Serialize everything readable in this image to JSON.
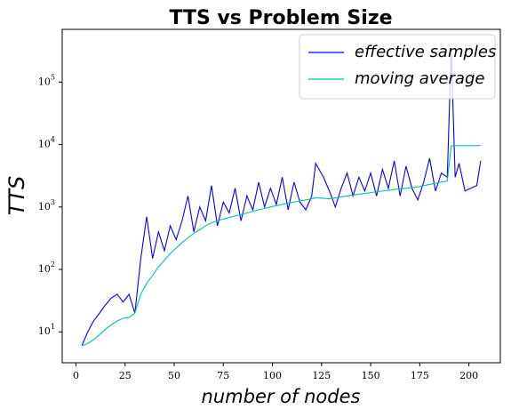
{
  "chart_data": {
    "type": "line",
    "title": "TTS vs Problem Size",
    "x_label": "number of nodes",
    "y_label": "TTS",
    "x": [
      3,
      6,
      9,
      12,
      15,
      18,
      21,
      24,
      27,
      30,
      33,
      36,
      39,
      42,
      45,
      48,
      51,
      54,
      57,
      60,
      63,
      66,
      69,
      72,
      75,
      78,
      81,
      84,
      87,
      90,
      93,
      96,
      99,
      102,
      105,
      108,
      111,
      114,
      117,
      120,
      122,
      126,
      129,
      132,
      135,
      138,
      141,
      144,
      147,
      150,
      153,
      156,
      159,
      162,
      165,
      168,
      171,
      174,
      177,
      180,
      183,
      186,
      189,
      191,
      193,
      195,
      198,
      201,
      204,
      206
    ],
    "series": [
      {
        "name": "effective samples",
        "color": "#0000ff",
        "values": [
          6,
          10,
          15,
          20,
          27,
          35,
          40,
          30,
          40,
          20,
          150,
          700,
          150,
          400,
          200,
          500,
          300,
          600,
          1500,
          400,
          1000,
          600,
          2200,
          500,
          1200,
          800,
          2000,
          600,
          1500,
          900,
          2500,
          1000,
          2000,
          1100,
          3000,
          900,
          2500,
          1200,
          900,
          1500,
          5000,
          3000,
          1800,
          1000,
          2000,
          3500,
          1500,
          3000,
          1800,
          3500,
          1500,
          4000,
          2000,
          5500,
          1500,
          4500,
          2000,
          1300,
          2500,
          6000,
          1800,
          3500,
          3000,
          350000,
          3000,
          5000,
          1800,
          2000,
          2200,
          5500
        ]
      },
      {
        "name": "moving average",
        "color": "#00bfbf",
        "values": [
          6,
          6.5,
          7.5,
          9,
          11,
          13,
          15,
          16.5,
          17,
          20,
          40,
          60,
          80,
          110,
          140,
          180,
          220,
          270,
          320,
          380,
          430,
          500,
          560,
          600,
          640,
          680,
          720,
          760,
          800,
          850,
          900,
          950,
          1000,
          1050,
          1100,
          1150,
          1200,
          1250,
          1300,
          1350,
          1400,
          1380,
          1350,
          1400,
          1450,
          1500,
          1550,
          1600,
          1650,
          1700,
          1750,
          1800,
          1850,
          1900,
          1950,
          2000,
          2050,
          2100,
          2200,
          2300,
          2400,
          2500,
          2600,
          9500,
          9600,
          9600,
          9600,
          9600,
          9600,
          9700
        ]
      }
    ],
    "xlim": [
      -7,
      216
    ],
    "ylim": [
      3.2,
      700000
    ],
    "log_y": true,
    "xticks": [
      0,
      25,
      50,
      75,
      100,
      125,
      150,
      175,
      200
    ],
    "yticks": [
      {
        "value": 10,
        "label": "10^1"
      },
      {
        "value": 100,
        "label": "10^2"
      },
      {
        "value": 1000,
        "label": "10^3"
      },
      {
        "value": 10000,
        "label": "10^4"
      },
      {
        "value": 100000,
        "label": "10^5"
      }
    ],
    "legend": "upper right"
  }
}
